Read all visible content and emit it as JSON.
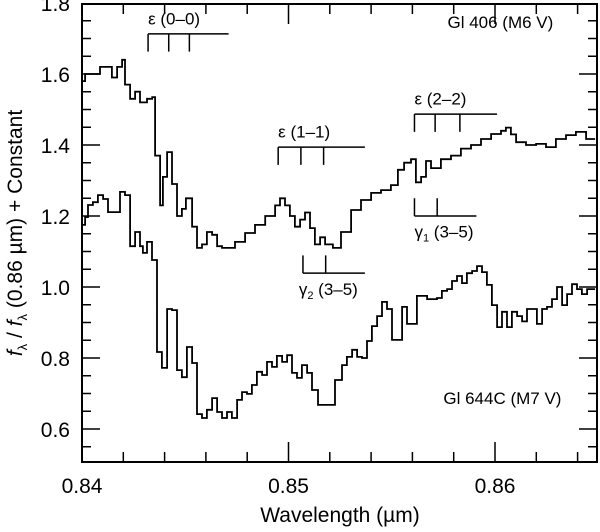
{
  "chart_data": {
    "type": "line",
    "style": "step",
    "title": "",
    "xlabel": "Wavelength (µm)",
    "ylabel": "f_λ / f_λ (0.86 µm) + Constant",
    "xlim": [
      0.84,
      0.865
    ],
    "ylim": [
      0.507,
      1.8
    ],
    "x_ticks_major": [
      0.84,
      0.85,
      0.86
    ],
    "x_tick_labels": [
      "0.84",
      "0.85",
      "0.86"
    ],
    "x_minor_step": 0.002,
    "y_ticks_major": [
      0.6,
      0.8,
      1.0,
      1.2,
      1.4,
      1.6,
      1.8
    ],
    "y_tick_labels": [
      "0.6",
      "0.8",
      "1.0",
      "1.2",
      "1.4",
      "1.6",
      "1.8"
    ],
    "y_minor_step": 0.05,
    "grid": false,
    "legend": "none",
    "series": [
      {
        "name": "Gl 406 (M6 V)",
        "label_pos": [
          0.8577,
          1.73
        ],
        "points": [
          [
            0.84,
            1.58
          ],
          [
            0.84015,
            1.6
          ],
          [
            0.84087,
            1.62
          ],
          [
            0.84145,
            1.59
          ],
          [
            0.8417,
            1.62
          ],
          [
            0.84194,
            1.64
          ],
          [
            0.84208,
            1.57
          ],
          [
            0.84233,
            1.53
          ],
          [
            0.84257,
            1.55
          ],
          [
            0.84281,
            1.52
          ],
          [
            0.84315,
            1.53
          ],
          [
            0.8434,
            1.535
          ],
          [
            0.84354,
            1.37
          ],
          [
            0.84378,
            1.23
          ],
          [
            0.84392,
            1.31
          ],
          [
            0.84412,
            1.38
          ],
          [
            0.84436,
            1.29
          ],
          [
            0.8446,
            1.2
          ],
          [
            0.84484,
            1.22
          ],
          [
            0.84503,
            1.25
          ],
          [
            0.84533,
            1.17
          ],
          [
            0.84557,
            1.11
          ],
          [
            0.84581,
            1.12
          ],
          [
            0.84605,
            1.155
          ],
          [
            0.8463,
            1.147
          ],
          [
            0.84654,
            1.115
          ],
          [
            0.84678,
            1.11
          ],
          [
            0.84741,
            1.127
          ],
          [
            0.8479,
            1.152
          ],
          [
            0.84838,
            1.175
          ],
          [
            0.84887,
            1.2
          ],
          [
            0.84935,
            1.23
          ],
          [
            0.84959,
            1.25
          ],
          [
            0.84983,
            1.23
          ],
          [
            0.85007,
            1.2
          ],
          [
            0.85031,
            1.17
          ],
          [
            0.85056,
            1.19
          ],
          [
            0.8508,
            1.21
          ],
          [
            0.85104,
            1.166
          ],
          [
            0.85128,
            1.12
          ],
          [
            0.85153,
            1.14
          ],
          [
            0.85177,
            1.12
          ],
          [
            0.85215,
            1.11
          ],
          [
            0.85254,
            1.155
          ],
          [
            0.85303,
            1.217
          ],
          [
            0.85351,
            1.245
          ],
          [
            0.854,
            1.265
          ],
          [
            0.85448,
            1.273
          ],
          [
            0.85496,
            1.287
          ],
          [
            0.8553,
            1.33
          ],
          [
            0.8556,
            1.35
          ],
          [
            0.85593,
            1.36
          ],
          [
            0.85617,
            1.295
          ],
          [
            0.85642,
            1.31
          ],
          [
            0.85666,
            1.355
          ],
          [
            0.8569,
            1.335
          ],
          [
            0.85738,
            1.36
          ],
          [
            0.85787,
            1.37
          ],
          [
            0.85835,
            1.39
          ],
          [
            0.85884,
            1.4
          ],
          [
            0.85932,
            1.417
          ],
          [
            0.85981,
            1.431
          ],
          [
            0.86029,
            1.44
          ],
          [
            0.86053,
            1.449
          ],
          [
            0.86077,
            1.43
          ],
          [
            0.86102,
            1.408
          ],
          [
            0.8615,
            1.4
          ],
          [
            0.86199,
            1.403
          ],
          [
            0.86247,
            1.394
          ],
          [
            0.86295,
            1.417
          ],
          [
            0.86344,
            1.428
          ],
          [
            0.86392,
            1.437
          ],
          [
            0.86441,
            1.417
          ],
          [
            0.86475,
            1.417
          ]
        ]
      },
      {
        "name": "Gl 644C (M7 V)",
        "label_pos": [
          0.8575,
          0.67
        ],
        "points": [
          [
            0.84,
            1.175
          ],
          [
            0.84015,
            1.197
          ],
          [
            0.84029,
            1.231
          ],
          [
            0.84053,
            1.239
          ],
          [
            0.84077,
            1.259
          ],
          [
            0.84102,
            1.248
          ],
          [
            0.84126,
            1.211
          ],
          [
            0.8416,
            1.211
          ],
          [
            0.84184,
            1.268
          ],
          [
            0.84208,
            1.259
          ],
          [
            0.84233,
            1.115
          ],
          [
            0.84257,
            1.155
          ],
          [
            0.84281,
            1.115
          ],
          [
            0.84295,
            1.096
          ],
          [
            0.84315,
            1.127
          ],
          [
            0.84339,
            1.076
          ],
          [
            0.84363,
            0.817
          ],
          [
            0.84387,
            0.772
          ],
          [
            0.84412,
            0.938
          ],
          [
            0.84436,
            0.935
          ],
          [
            0.8446,
            0.766
          ],
          [
            0.84484,
            0.746
          ],
          [
            0.84508,
            0.831
          ],
          [
            0.84533,
            0.786
          ],
          [
            0.84557,
            0.642
          ],
          [
            0.84581,
            0.631
          ],
          [
            0.84605,
            0.654
          ],
          [
            0.8463,
            0.687
          ],
          [
            0.84654,
            0.648
          ],
          [
            0.84678,
            0.631
          ],
          [
            0.84702,
            0.648
          ],
          [
            0.84726,
            0.631
          ],
          [
            0.84751,
            0.682
          ],
          [
            0.84775,
            0.704
          ],
          [
            0.84799,
            0.699
          ],
          [
            0.84823,
            0.724
          ],
          [
            0.84847,
            0.761
          ],
          [
            0.84872,
            0.752
          ],
          [
            0.84896,
            0.789
          ],
          [
            0.8492,
            0.775
          ],
          [
            0.84944,
            0.806
          ],
          [
            0.84969,
            0.789
          ],
          [
            0.84993,
            0.808
          ],
          [
            0.85017,
            0.758
          ],
          [
            0.85041,
            0.744
          ],
          [
            0.85065,
            0.78
          ],
          [
            0.8509,
            0.758
          ],
          [
            0.85114,
            0.71
          ],
          [
            0.85143,
            0.668
          ],
          [
            0.85191,
            0.668
          ],
          [
            0.85225,
            0.738
          ],
          [
            0.85259,
            0.78
          ],
          [
            0.85283,
            0.803
          ],
          [
            0.85308,
            0.823
          ],
          [
            0.85332,
            0.803
          ],
          [
            0.85356,
            0.8
          ],
          [
            0.8538,
            0.848
          ],
          [
            0.85404,
            0.89
          ],
          [
            0.85429,
            0.918
          ],
          [
            0.85453,
            0.958
          ],
          [
            0.85477,
            0.938
          ],
          [
            0.85501,
            0.851
          ],
          [
            0.85525,
            0.851
          ],
          [
            0.8555,
            0.944
          ],
          [
            0.85574,
            0.896
          ],
          [
            0.85598,
            0.896
          ],
          [
            0.85622,
            0.975
          ],
          [
            0.85671,
            0.966
          ],
          [
            0.85719,
            0.969
          ],
          [
            0.85743,
            0.989
          ],
          [
            0.85768,
            0.994
          ],
          [
            0.85792,
            1.017
          ],
          [
            0.85816,
            1.031
          ],
          [
            0.8584,
            1.011
          ],
          [
            0.85864,
            1.039
          ],
          [
            0.85889,
            1.045
          ],
          [
            0.85913,
            1.059
          ],
          [
            0.85937,
            1.042
          ],
          [
            0.85961,
            1.006
          ],
          [
            0.85985,
            0.949
          ],
          [
            0.8601,
            0.887
          ],
          [
            0.86034,
            0.93
          ],
          [
            0.86058,
            0.887
          ],
          [
            0.86082,
            0.93
          ],
          [
            0.86107,
            0.918
          ],
          [
            0.86131,
            0.903
          ],
          [
            0.86155,
            0.938
          ],
          [
            0.86179,
            0.938
          ],
          [
            0.86203,
            0.896
          ],
          [
            0.86228,
            0.938
          ],
          [
            0.86252,
            0.944
          ],
          [
            0.86276,
            0.966
          ],
          [
            0.863,
            1.0
          ],
          [
            0.86325,
            0.949
          ],
          [
            0.86349,
            0.98
          ],
          [
            0.86373,
            1.008
          ],
          [
            0.86397,
            0.994
          ],
          [
            0.86421,
            0.98
          ],
          [
            0.86446,
            0.994
          ],
          [
            0.86475,
            0.994
          ]
        ]
      }
    ],
    "annotations": [
      {
        "label_greek": "ε",
        "label_sub": "",
        "label_rest": " (0–0)",
        "kind": "above",
        "x_start": 0.8432,
        "x_end": 0.8471,
        "ticks": [
          0.8432,
          0.8442,
          0.8452
        ],
        "y_bar": 1.713,
        "y_tick_end": 1.663,
        "label_x": 0.8432,
        "label_y": 1.74
      },
      {
        "label_greek": "ε",
        "label_sub": "",
        "label_rest": " (1–1)",
        "kind": "above",
        "x_start": 0.8495,
        "x_end": 0.8537,
        "ticks": [
          0.8495,
          0.8506,
          0.8517
        ],
        "y_bar": 1.394,
        "y_tick_end": 1.344,
        "label_x": 0.8495,
        "label_y": 1.421
      },
      {
        "label_greek": "ε",
        "label_sub": "",
        "label_rest": " (2–2)",
        "kind": "above",
        "x_start": 0.8561,
        "x_end": 0.8601,
        "ticks": [
          0.8561,
          0.8571,
          0.8583
        ],
        "y_bar": 1.487,
        "y_tick_end": 1.437,
        "label_x": 0.8561,
        "label_y": 1.514
      },
      {
        "label_greek": "γ",
        "label_sub": "1",
        "label_rest": " (3–5)",
        "kind": "below",
        "x_start": 0.8561,
        "x_end": 0.8591,
        "ticks": [
          0.8561,
          0.8572
        ],
        "y_bar": 1.2,
        "y_tick_end": 1.25,
        "label_x": 0.8561,
        "label_y": 1.14
      },
      {
        "label_greek": "γ",
        "label_sub": "2",
        "label_rest": " (3–5)",
        "kind": "below",
        "x_start": 0.8507,
        "x_end": 0.8537,
        "ticks": [
          0.8507,
          0.8518
        ],
        "y_bar": 1.039,
        "y_tick_end": 1.089,
        "label_x": 0.8505,
        "label_y": 0.977
      }
    ]
  }
}
